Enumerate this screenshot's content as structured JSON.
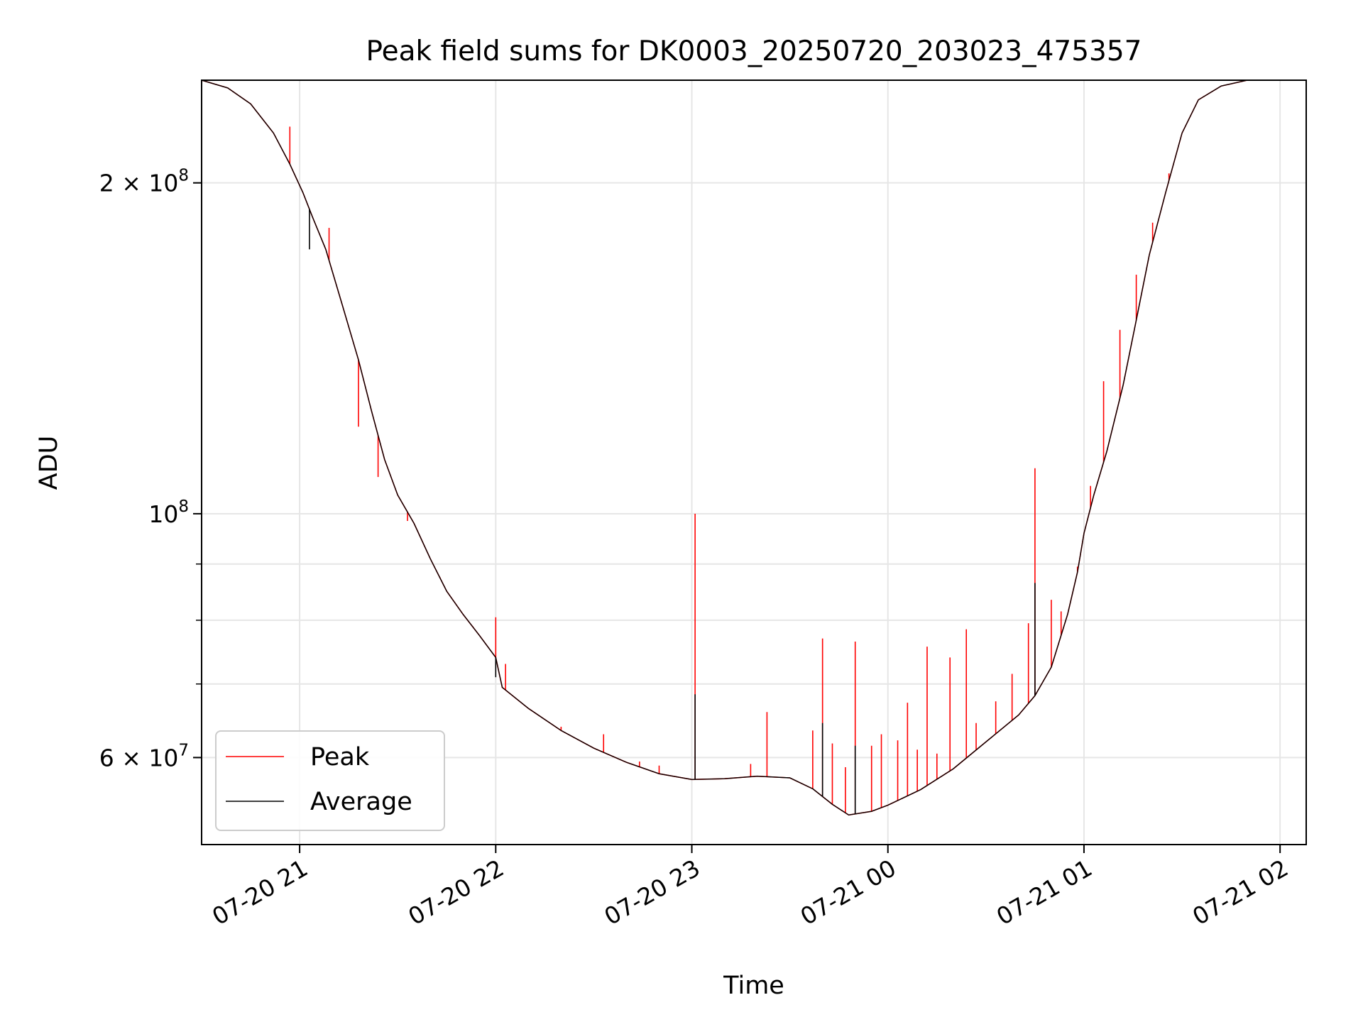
{
  "chart_data": {
    "type": "line",
    "title": "Peak field sums for DK0003_20250720_203023_475357",
    "xlabel": "Time",
    "ylabel": "ADU",
    "y_scale": "log",
    "xlim": [
      "2025-07-20 20:30",
      "2025-07-21 02:08"
    ],
    "ylim": [
      50000000,
      248000000
    ],
    "grid": true,
    "legend_position": "lower left",
    "x_ticks": [
      {
        "t": "2025-07-20 21:00",
        "label": "07-20 21"
      },
      {
        "t": "2025-07-20 22:00",
        "label": "07-20 22"
      },
      {
        "t": "2025-07-20 23:00",
        "label": "07-20 23"
      },
      {
        "t": "2025-07-21 00:00",
        "label": "07-21 00"
      },
      {
        "t": "2025-07-21 01:00",
        "label": "07-21 01"
      },
      {
        "t": "2025-07-21 02:00",
        "label": "07-21 02"
      }
    ],
    "y_major_ticks": [
      {
        "value": 100000000,
        "base": "10",
        "exp": "8",
        "mantissa": ""
      },
      {
        "value": 200000000,
        "base": "10",
        "exp": "8",
        "mantissa": "2 × "
      },
      {
        "value": 60000000,
        "base": "10",
        "exp": "7",
        "mantissa": "6 × "
      }
    ],
    "y_minor_ticks": [
      60000000,
      70000000,
      80000000,
      90000000,
      100000000,
      200000000
    ],
    "series": [
      {
        "name": "Peak",
        "color": "#ff0000",
        "points": [
          [
            "2025-07-20 20:30",
            248000000
          ],
          [
            "2025-07-20 20:38",
            244000000
          ],
          [
            "2025-07-20 20:45",
            236000000
          ],
          [
            "2025-07-20 20:52",
            222000000
          ],
          [
            "2025-07-20 20:57",
            208000000
          ],
          [
            "2025-07-20 21:01",
            196000000
          ],
          [
            "2025-07-20 21:04",
            186000000
          ],
          [
            "2025-07-20 21:08",
            174000000
          ],
          [
            "2025-07-20 21:13",
            155000000
          ],
          [
            "2025-07-20 21:18",
            138000000
          ],
          [
            "2025-07-20 21:22",
            124000000
          ],
          [
            "2025-07-20 21:26",
            112000000
          ],
          [
            "2025-07-20 21:30",
            104000000
          ],
          [
            "2025-07-20 21:35",
            98000000
          ],
          [
            "2025-07-20 21:40",
            91000000
          ],
          [
            "2025-07-20 21:45",
            85000000
          ],
          [
            "2025-07-20 21:50",
            81000000
          ],
          [
            "2025-07-20 21:55",
            77500000
          ],
          [
            "2025-07-20 22:00",
            74000000
          ],
          [
            "2025-07-20 22:02",
            69500000
          ],
          [
            "2025-07-20 22:10",
            66500000
          ],
          [
            "2025-07-20 22:20",
            63500000
          ],
          [
            "2025-07-20 22:30",
            61200000
          ],
          [
            "2025-07-20 22:40",
            59400000
          ],
          [
            "2025-07-20 22:50",
            58000000
          ],
          [
            "2025-07-20 23:00",
            57300000
          ],
          [
            "2025-07-20 23:10",
            57400000
          ],
          [
            "2025-07-20 23:20",
            57700000
          ],
          [
            "2025-07-20 23:30",
            57500000
          ],
          [
            "2025-07-20 23:37",
            56200000
          ],
          [
            "2025-07-20 23:43",
            54400000
          ],
          [
            "2025-07-20 23:48",
            53200000
          ],
          [
            "2025-07-20 23:55",
            53600000
          ],
          [
            "2025-07-21 00:00",
            54300000
          ],
          [
            "2025-07-21 00:10",
            56100000
          ],
          [
            "2025-07-21 00:20",
            58600000
          ],
          [
            "2025-07-21 00:30",
            62000000
          ],
          [
            "2025-07-21 00:40",
            65600000
          ],
          [
            "2025-07-21 00:45",
            68300000
          ],
          [
            "2025-07-21 00:50",
            72500000
          ],
          [
            "2025-07-21 00:55",
            81000000
          ],
          [
            "2025-07-21 00:58",
            88500000
          ],
          [
            "2025-07-21 01:00",
            96000000
          ],
          [
            "2025-07-21 01:03",
            104000000
          ],
          [
            "2025-07-21 01:07",
            114000000
          ],
          [
            "2025-07-21 01:12",
            131000000
          ],
          [
            "2025-07-21 01:16",
            150000000
          ],
          [
            "2025-07-21 01:20",
            172000000
          ],
          [
            "2025-07-21 01:25",
            196000000
          ],
          [
            "2025-07-21 01:30",
            222000000
          ],
          [
            "2025-07-21 01:35",
            238000000
          ],
          [
            "2025-07-21 01:42",
            245000000
          ],
          [
            "2025-07-21 01:50",
            248000000
          ],
          [
            "2025-07-21 02:08",
            248000000
          ]
        ],
        "spikes": [
          [
            "2025-07-20 20:57",
            225000000
          ],
          [
            "2025-07-20 21:09",
            182000000
          ],
          [
            "2025-07-20 21:18",
            120000000
          ],
          [
            "2025-07-20 21:24",
            108000000
          ],
          [
            "2025-07-20 21:33",
            98500000
          ],
          [
            "2025-07-20 21:43",
            87500000
          ],
          [
            "2025-07-20 21:53",
            79000000
          ],
          [
            "2025-07-20 22:00",
            80500000
          ],
          [
            "2025-07-20 22:03",
            73000000
          ],
          [
            "2025-07-20 22:20",
            64000000
          ],
          [
            "2025-07-20 22:33",
            63000000
          ],
          [
            "2025-07-20 22:44",
            59500000
          ],
          [
            "2025-07-20 22:50",
            59000000
          ],
          [
            "2025-07-20 23:01",
            100000000
          ],
          [
            "2025-07-20 23:18",
            59200000
          ],
          [
            "2025-07-20 23:23",
            66000000
          ],
          [
            "2025-07-20 23:37",
            63500000
          ],
          [
            "2025-07-20 23:40",
            77000000
          ],
          [
            "2025-07-20 23:43",
            61800000
          ],
          [
            "2025-07-20 23:47",
            58800000
          ],
          [
            "2025-07-20 23:50",
            76500000
          ],
          [
            "2025-07-20 23:55",
            61500000
          ],
          [
            "2025-07-20 23:58",
            63000000
          ],
          [
            "2025-07-21 00:03",
            62200000
          ],
          [
            "2025-07-21 00:06",
            67300000
          ],
          [
            "2025-07-21 00:09",
            61000000
          ],
          [
            "2025-07-21 00:12",
            75700000
          ],
          [
            "2025-07-21 00:15",
            60500000
          ],
          [
            "2025-07-21 00:19",
            74000000
          ],
          [
            "2025-07-21 00:24",
            78500000
          ],
          [
            "2025-07-21 00:27",
            64500000
          ],
          [
            "2025-07-21 00:33",
            67500000
          ],
          [
            "2025-07-21 00:38",
            71500000
          ],
          [
            "2025-07-21 00:43",
            79500000
          ],
          [
            "2025-07-21 00:45",
            110000000
          ],
          [
            "2025-07-21 00:50",
            83500000
          ],
          [
            "2025-07-21 00:53",
            81500000
          ],
          [
            "2025-07-21 00:58",
            89500000
          ],
          [
            "2025-07-21 01:02",
            106000000
          ],
          [
            "2025-07-21 01:06",
            132000000
          ],
          [
            "2025-07-21 01:11",
            147000000
          ],
          [
            "2025-07-21 01:16",
            165000000
          ],
          [
            "2025-07-21 01:21",
            184000000
          ],
          [
            "2025-07-21 01:26",
            204000000
          ]
        ]
      },
      {
        "name": "Average",
        "color": "#000000",
        "points": [
          [
            "2025-07-20 20:30",
            248000000
          ],
          [
            "2025-07-20 20:38",
            244000000
          ],
          [
            "2025-07-20 20:45",
            236000000
          ],
          [
            "2025-07-20 20:52",
            222000000
          ],
          [
            "2025-07-20 20:57",
            208000000
          ],
          [
            "2025-07-20 21:01",
            196000000
          ],
          [
            "2025-07-20 21:04",
            186000000
          ],
          [
            "2025-07-20 21:08",
            174000000
          ],
          [
            "2025-07-20 21:13",
            155000000
          ],
          [
            "2025-07-20 21:18",
            138000000
          ],
          [
            "2025-07-20 21:22",
            124000000
          ],
          [
            "2025-07-20 21:26",
            112000000
          ],
          [
            "2025-07-20 21:30",
            104000000
          ],
          [
            "2025-07-20 21:35",
            98000000
          ],
          [
            "2025-07-20 21:40",
            91000000
          ],
          [
            "2025-07-20 21:45",
            85000000
          ],
          [
            "2025-07-20 21:50",
            81000000
          ],
          [
            "2025-07-20 21:55",
            77500000
          ],
          [
            "2025-07-20 22:00",
            74000000
          ],
          [
            "2025-07-20 22:02",
            69500000
          ],
          [
            "2025-07-20 22:10",
            66500000
          ],
          [
            "2025-07-20 22:20",
            63500000
          ],
          [
            "2025-07-20 22:30",
            61200000
          ],
          [
            "2025-07-20 22:40",
            59400000
          ],
          [
            "2025-07-20 22:50",
            58000000
          ],
          [
            "2025-07-20 23:00",
            57300000
          ],
          [
            "2025-07-20 23:10",
            57400000
          ],
          [
            "2025-07-20 23:20",
            57700000
          ],
          [
            "2025-07-20 23:30",
            57500000
          ],
          [
            "2025-07-20 23:37",
            56200000
          ],
          [
            "2025-07-20 23:43",
            54400000
          ],
          [
            "2025-07-20 23:48",
            53200000
          ],
          [
            "2025-07-20 23:55",
            53600000
          ],
          [
            "2025-07-21 00:00",
            54300000
          ],
          [
            "2025-07-21 00:10",
            56100000
          ],
          [
            "2025-07-21 00:20",
            58600000
          ],
          [
            "2025-07-21 00:30",
            62000000
          ],
          [
            "2025-07-21 00:40",
            65600000
          ],
          [
            "2025-07-21 00:45",
            68300000
          ],
          [
            "2025-07-21 00:50",
            72500000
          ],
          [
            "2025-07-21 00:55",
            81000000
          ],
          [
            "2025-07-21 00:58",
            88500000
          ],
          [
            "2025-07-21 01:00",
            96000000
          ],
          [
            "2025-07-21 01:03",
            104000000
          ],
          [
            "2025-07-21 01:07",
            114000000
          ],
          [
            "2025-07-21 01:12",
            131000000
          ],
          [
            "2025-07-21 01:16",
            150000000
          ],
          [
            "2025-07-21 01:20",
            172000000
          ],
          [
            "2025-07-21 01:25",
            196000000
          ],
          [
            "2025-07-21 01:30",
            222000000
          ],
          [
            "2025-07-21 01:35",
            238000000
          ],
          [
            "2025-07-21 01:42",
            245000000
          ],
          [
            "2025-07-21 01:50",
            248000000
          ],
          [
            "2025-07-21 02:08",
            248000000
          ]
        ],
        "spikes": [
          [
            "2025-07-20 21:03",
            174000000
          ],
          [
            "2025-07-20 22:00",
            71000000
          ],
          [
            "2025-07-20 23:01",
            68500000
          ],
          [
            "2025-07-20 23:40",
            64500000
          ],
          [
            "2025-07-20 23:50",
            61500000
          ],
          [
            "2025-07-21 00:45",
            86500000
          ]
        ]
      }
    ]
  }
}
